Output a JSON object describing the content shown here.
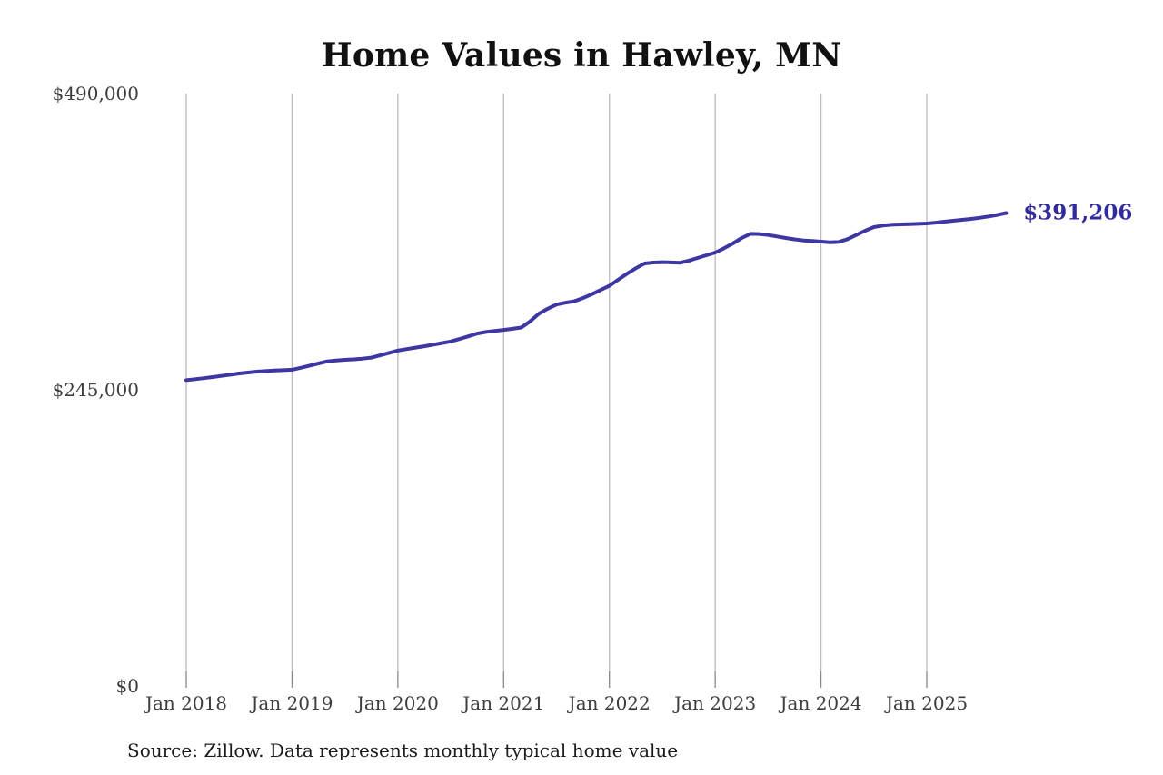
{
  "chart": {
    "title": "Home Values in Hawley, MN",
    "end_label": "$391,206",
    "source": "Source: Zillow. Data represents monthly typical home value"
  },
  "colors": {
    "line": "#3d37a3",
    "end_label": "#322b9e",
    "gridline": "#bbbbbb",
    "tick": "#888888",
    "axis_text": "#3d3d3d",
    "title_text": "#111111",
    "background": "#ffffff"
  },
  "chart_data": {
    "type": "line",
    "title": "Home Values in Hawley, MN",
    "x_interval": "monthly",
    "x_start": "2018-01",
    "x_end": "2025-10",
    "x": [
      "2018-01",
      "2018-02",
      "2018-03",
      "2018-04",
      "2018-05",
      "2018-06",
      "2018-07",
      "2018-08",
      "2018-09",
      "2018-10",
      "2018-11",
      "2018-12",
      "2019-01",
      "2019-02",
      "2019-03",
      "2019-04",
      "2019-05",
      "2019-06",
      "2019-07",
      "2019-08",
      "2019-09",
      "2019-10",
      "2019-11",
      "2019-12",
      "2020-01",
      "2020-02",
      "2020-03",
      "2020-04",
      "2020-05",
      "2020-06",
      "2020-07",
      "2020-08",
      "2020-09",
      "2020-10",
      "2020-11",
      "2020-12",
      "2021-01",
      "2021-02",
      "2021-03",
      "2021-04",
      "2021-05",
      "2021-06",
      "2021-07",
      "2021-08",
      "2021-09",
      "2021-10",
      "2021-11",
      "2021-12",
      "2022-01",
      "2022-02",
      "2022-03",
      "2022-04",
      "2022-05",
      "2022-06",
      "2022-07",
      "2022-08",
      "2022-09",
      "2022-10",
      "2022-11",
      "2022-12",
      "2023-01",
      "2023-02",
      "2023-03",
      "2023-04",
      "2023-05",
      "2023-06",
      "2023-07",
      "2023-08",
      "2023-09",
      "2023-10",
      "2023-11",
      "2023-12",
      "2024-01",
      "2024-02",
      "2024-03",
      "2024-04",
      "2024-05",
      "2024-06",
      "2024-07",
      "2024-08",
      "2024-09",
      "2024-10",
      "2024-11",
      "2024-12",
      "2025-01",
      "2025-02",
      "2025-03",
      "2025-04",
      "2025-05",
      "2025-06",
      "2025-07",
      "2025-08",
      "2025-09",
      "2025-10"
    ],
    "values": [
      253000,
      253800,
      254600,
      255500,
      256500,
      257500,
      258500,
      259300,
      260000,
      260500,
      260900,
      261200,
      261600,
      263200,
      265000,
      266800,
      268500,
      269300,
      269800,
      270200,
      270800,
      271600,
      273500,
      275500,
      277500,
      278700,
      279900,
      281000,
      282300,
      283600,
      285000,
      287000,
      289200,
      291500,
      292800,
      293700,
      294500,
      295400,
      296500,
      301500,
      308000,
      312000,
      315500,
      317000,
      318200,
      320800,
      324000,
      327500,
      331000,
      336000,
      341000,
      345500,
      349500,
      350200,
      350500,
      350300,
      350000,
      351800,
      354000,
      356200,
      358500,
      362000,
      366000,
      370500,
      374000,
      373800,
      373000,
      371800,
      370500,
      369400,
      368500,
      368000,
      367500,
      367000,
      367200,
      369500,
      373000,
      376500,
      379500,
      380800,
      381500,
      381800,
      382000,
      382200,
      382500,
      383200,
      384000,
      384800,
      385500,
      386300,
      387200,
      388300,
      389600,
      391206
    ],
    "end_value": 391206,
    "end_value_label": "$391,206",
    "xlabel": "",
    "ylabel": "",
    "x_tick_labels": [
      "Jan 2018",
      "Jan 2019",
      "Jan 2020",
      "Jan 2021",
      "Jan 2022",
      "Jan 2023",
      "Jan 2024",
      "Jan 2025"
    ],
    "y_ticks": [
      0,
      245000,
      490000
    ],
    "y_tick_labels": [
      "$0",
      "$245,000",
      "$490,000"
    ],
    "ylim": [
      0,
      490000
    ],
    "grid": "vertical-only",
    "legend": "none",
    "source": "Source: Zillow. Data represents monthly typical home value"
  }
}
